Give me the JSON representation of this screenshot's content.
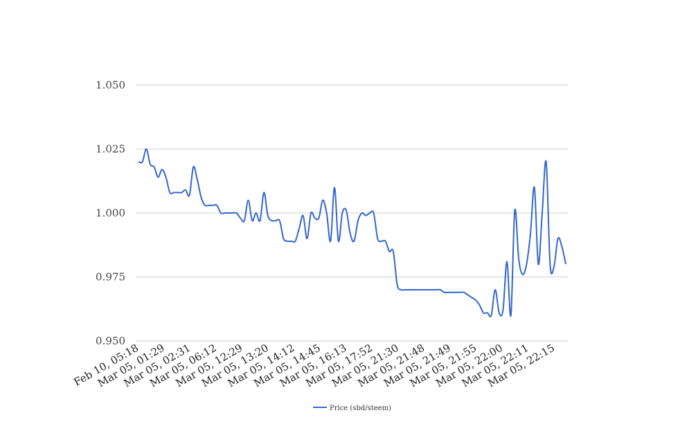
{
  "chart_data": {
    "type": "line",
    "x_ticks": [
      "Feb 10, 05:18",
      "Mar 05, 01:29",
      "Mar 05, 02:31",
      "Mar 05, 06:12",
      "Mar 05, 12:29",
      "Mar 05, 13:20",
      "Mar 05, 14:12",
      "Mar 05, 14:45",
      "Mar 05, 16:13",
      "Mar 05, 17:52",
      "Mar 05, 21:30",
      "Mar 05, 21:48",
      "Mar 05, 21:49",
      "Mar 05, 21:55",
      "Mar 05, 22:00",
      "Mar 05, 22:11",
      "Mar 05, 22:15"
    ],
    "y_ticks": [
      "1.050",
      "1.025",
      "1.000",
      "0.975",
      "0.950"
    ],
    "ylim": [
      0.95,
      1.05
    ],
    "grid": true,
    "legend_position": "bottom",
    "series": [
      {
        "name": "Price (sbd/steem)",
        "color": "#3366cc",
        "values": [
          1.02,
          1.02,
          1.025,
          1.019,
          1.018,
          1.014,
          1.017,
          1.014,
          1.008,
          1.008,
          1.008,
          1.008,
          1.009,
          1.007,
          1.018,
          1.013,
          1.006,
          1.003,
          1.003,
          1.003,
          1.003,
          1.0,
          1.0,
          1.0,
          1.0,
          1.0,
          0.998,
          0.997,
          1.005,
          0.997,
          1.0,
          0.997,
          1.008,
          0.999,
          0.997,
          0.997,
          0.997,
          0.99,
          0.989,
          0.989,
          0.989,
          0.994,
          0.999,
          0.99,
          1.0,
          0.998,
          0.998,
          1.005,
          1.0,
          0.989,
          1.01,
          0.989,
          1.0,
          1.001,
          0.992,
          0.989,
          0.997,
          1.0,
          0.999,
          1.0,
          1.0,
          0.99,
          0.989,
          0.989,
          0.985,
          0.985,
          0.972,
          0.97,
          0.97,
          0.97,
          0.97,
          0.97,
          0.97,
          0.97,
          0.97,
          0.97,
          0.97,
          0.97,
          0.969,
          0.969,
          0.969,
          0.969,
          0.969,
          0.969,
          0.968,
          0.967,
          0.966,
          0.964,
          0.961,
          0.961,
          0.96,
          0.97,
          0.961,
          0.962,
          0.981,
          0.96,
          1.001,
          0.982,
          0.976,
          0.98,
          0.992,
          1.01,
          0.98,
          1.0,
          1.02,
          0.98,
          0.979,
          0.99,
          0.987,
          0.98
        ]
      }
    ]
  }
}
